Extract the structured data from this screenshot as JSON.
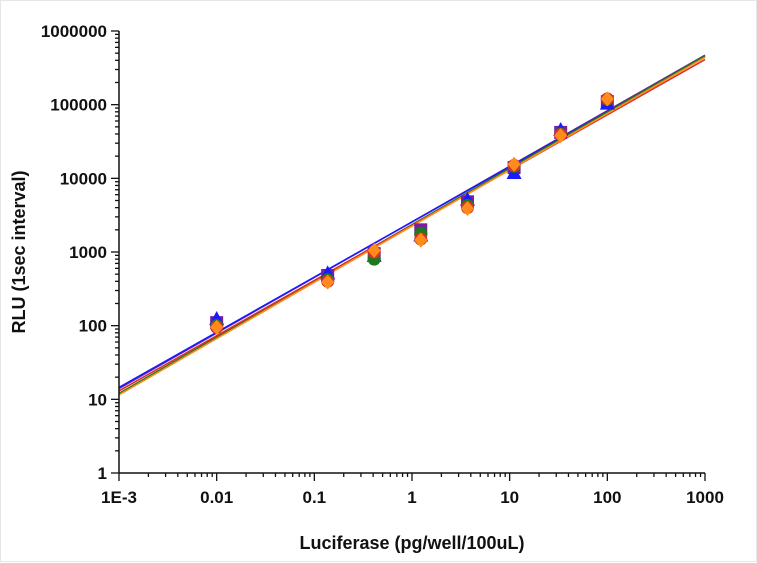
{
  "chart_data": {
    "type": "scatter",
    "title": "",
    "xlabel": "Luciferase (pg/well/100uL)",
    "ylabel": "RLU (1sec interval)",
    "x_scale": "log",
    "y_scale": "log",
    "xlim": [
      0.001,
      1000
    ],
    "ylim": [
      1,
      1000000
    ],
    "x_tick_labels": [
      "1E-3",
      "0.01",
      "0.1",
      "1",
      "10",
      "100",
      "1000"
    ],
    "y_tick_labels": [
      "1",
      "10",
      "100",
      "1000",
      "10000",
      "100000",
      "1000000"
    ],
    "grid": false,
    "legend": "none",
    "series": [
      {
        "color": "#7b1fa2",
        "marker": "square",
        "x": [
          0.01,
          0.137,
          0.41,
          1.23,
          3.7,
          11.1,
          33.3,
          100
        ],
        "y": [
          110,
          480,
          950,
          2000,
          4800,
          14000,
          42000,
          110000
        ],
        "fit": [
          [
            0.001,
            14
          ],
          [
            1000,
            470000
          ]
        ]
      },
      {
        "color": "#1a1aff",
        "marker": "triangle",
        "x": [
          0.01,
          0.137,
          0.41,
          1.23,
          3.7,
          11.1,
          33.3,
          100
        ],
        "y": [
          125,
          520,
          900,
          1700,
          5200,
          12000,
          46000,
          105000
        ],
        "fit": [
          [
            0.001,
            14.5
          ],
          [
            1000,
            450000
          ]
        ]
      },
      {
        "color": "#1b7a1b",
        "marker": "circle",
        "x": [
          0.01,
          0.137,
          0.41,
          1.23,
          3.7,
          11.1,
          33.3,
          100
        ],
        "y": [
          100,
          420,
          800,
          1800,
          4300,
          14500,
          40000,
          118000
        ],
        "fit": [
          [
            0.001,
            12
          ],
          [
            1000,
            460000
          ]
        ]
      },
      {
        "color": "#d4322c",
        "marker": "circle",
        "x": [
          0.01,
          0.137,
          0.41,
          1.23,
          3.7,
          11.1,
          33.3,
          100
        ],
        "y": [
          95,
          400,
          1000,
          1500,
          4000,
          15000,
          39000,
          120000
        ],
        "fit": [
          [
            0.001,
            13
          ],
          [
            1000,
            410000
          ]
        ]
      },
      {
        "color": "#ff8c1a",
        "marker": "diamond",
        "x": [
          0.01,
          0.137,
          0.41,
          1.23,
          3.7,
          11.1,
          33.3,
          100
        ],
        "y": [
          95,
          390,
          1050,
          1450,
          3900,
          15500,
          38000,
          120000
        ],
        "fit": [
          [
            0.001,
            11.5
          ],
          [
            1000,
            440000
          ]
        ]
      }
    ]
  }
}
